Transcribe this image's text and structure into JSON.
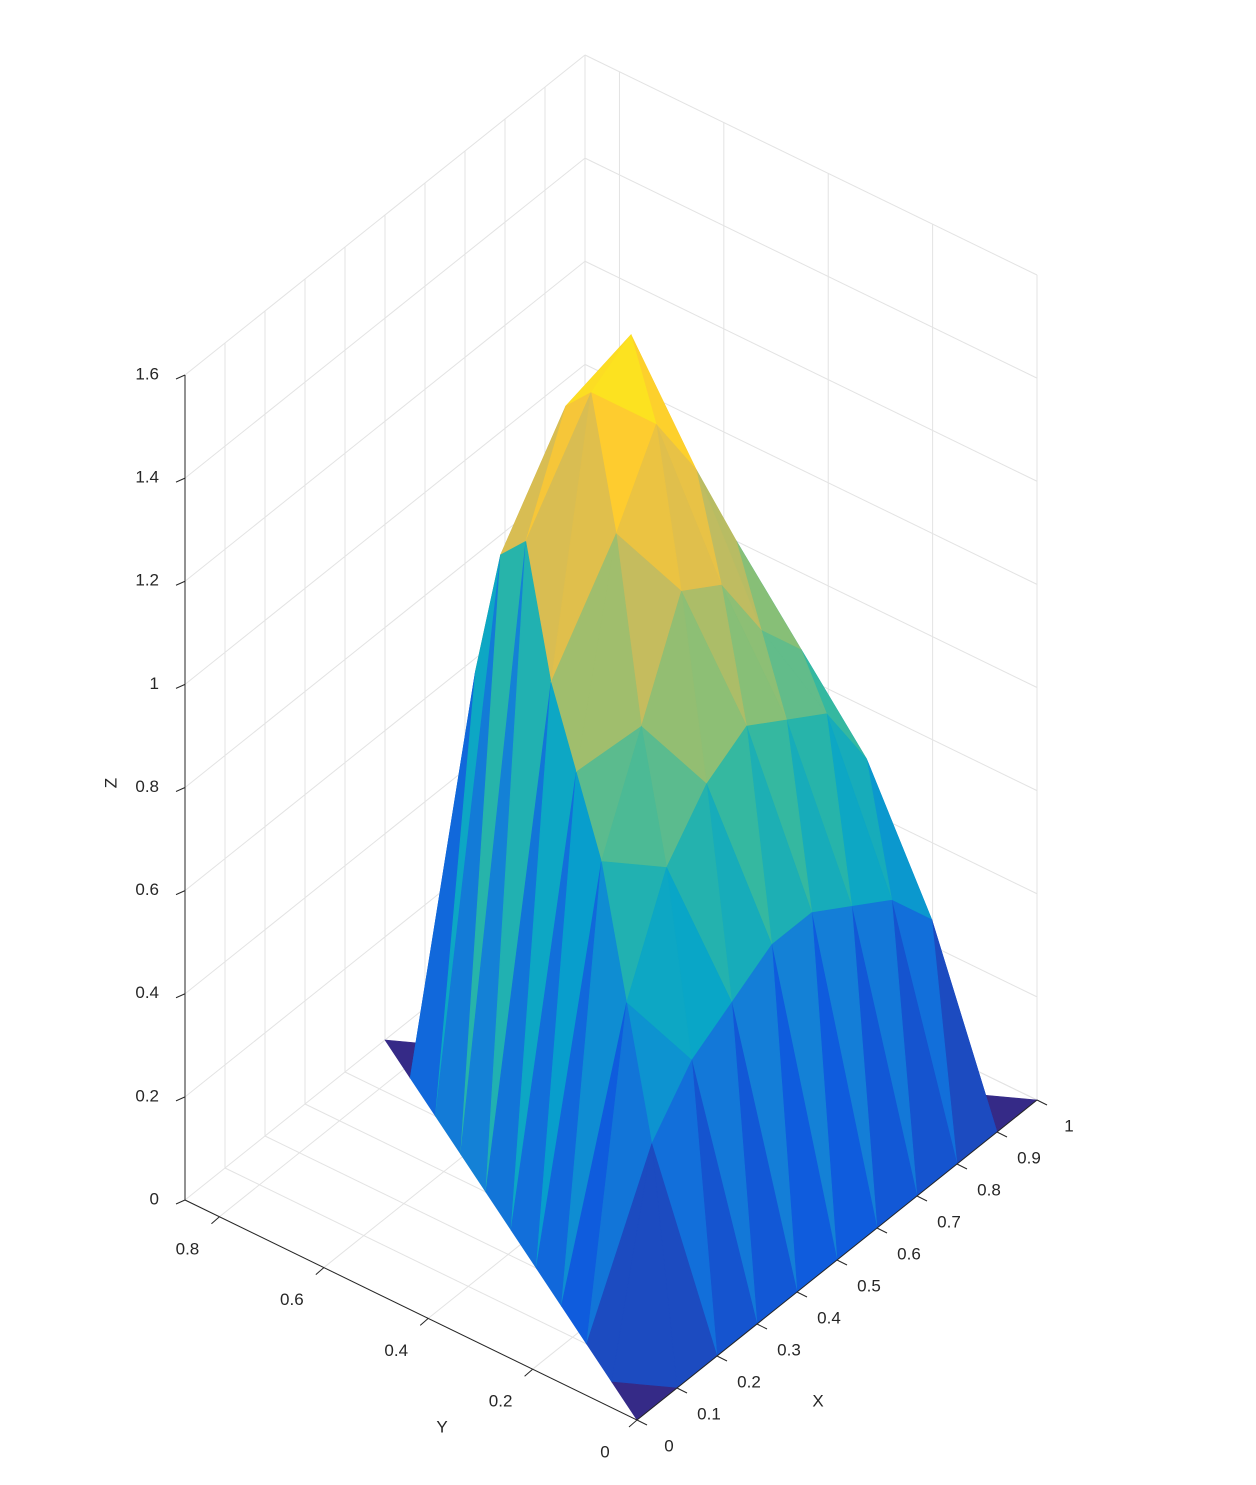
{
  "chart_data": {
    "type": "surface",
    "colormap": "parula",
    "xlabel": "X",
    "ylabel": "Y",
    "zlabel": "Z",
    "xlim": [
      0,
      1
    ],
    "ylim": [
      0,
      0.866
    ],
    "zlim": [
      0,
      1.6
    ],
    "xticks": [
      0,
      0.1,
      0.2,
      0.3,
      0.4,
      0.5,
      0.6,
      0.7,
      0.8,
      0.9,
      1
    ],
    "yticks": [
      0,
      0.2,
      0.4,
      0.6,
      0.8
    ],
    "zticks": [
      0,
      0.2,
      0.4,
      0.6,
      0.8,
      1,
      1.2,
      1.4,
      1.6
    ],
    "grid": true,
    "vertices": [
      [
        0,
        0
      ],
      [
        1,
        0
      ],
      [
        0.5,
        0.866
      ]
    ],
    "z": [
      [
        0,
        0,
        0,
        0,
        0,
        0,
        0,
        0,
        0,
        0,
        0
      ],
      [
        0,
        0.4,
        0.5,
        0.55,
        0.6,
        0.6,
        0.55,
        0.5,
        0.4,
        0
      ],
      [
        0,
        0.6,
        0.8,
        0.9,
        0.95,
        0.9,
        0.85,
        0.7,
        0
      ],
      [
        0,
        0.8,
        1.0,
        1.2,
        1.15,
        1.0,
        0.9,
        0
      ],
      [
        0,
        0.9,
        1.3,
        1.45,
        1.3,
        1.1,
        0
      ],
      [
        0,
        1.0,
        1.5,
        1.55,
        1.2,
        0
      ],
      [
        0,
        1.2,
        1.4,
        1.1,
        0
      ],
      [
        0,
        1.1,
        1.0,
        0
      ],
      [
        0,
        0.8,
        0
      ],
      [
        0,
        0
      ],
      [
        0
      ]
    ]
  }
}
